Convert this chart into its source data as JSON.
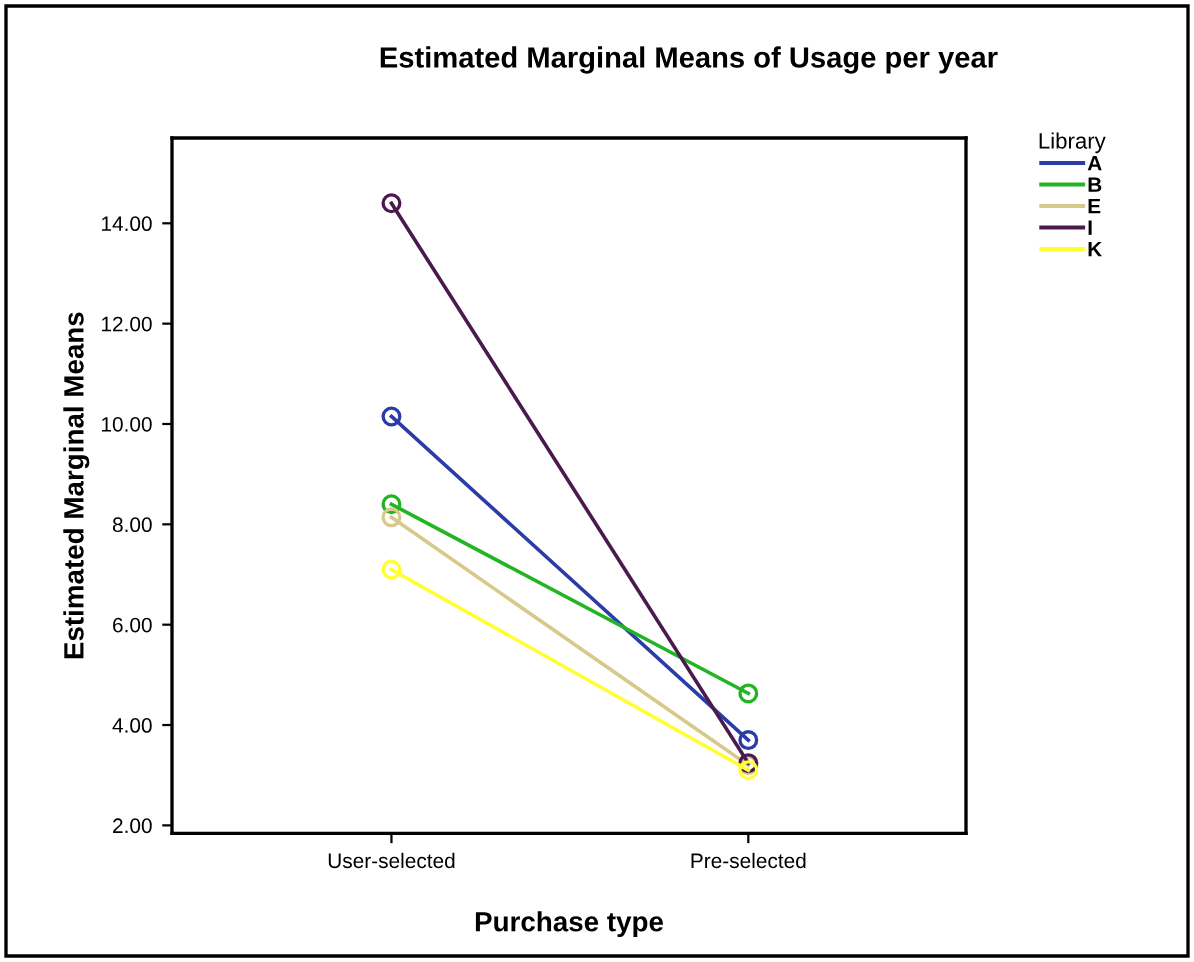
{
  "chart_data": {
    "type": "line",
    "title": "Estimated Marginal Means of Usage per year",
    "xlabel": "Purchase type",
    "ylabel": "Estimated Marginal Means",
    "legend_title": "Library",
    "categories": [
      "User-selected",
      "Pre-selected"
    ],
    "series": [
      {
        "name": "A",
        "color": "#2a3ca8",
        "values": [
          10.15,
          3.7
        ]
      },
      {
        "name": "B",
        "color": "#22b422",
        "values": [
          8.4,
          4.63
        ]
      },
      {
        "name": "E",
        "color": "#d8c88a",
        "values": [
          8.14,
          3.2
        ]
      },
      {
        "name": "I",
        "color": "#4a1a4e",
        "values": [
          14.4,
          3.24
        ]
      },
      {
        "name": "K",
        "color": "#ffff33",
        "values": [
          7.1,
          3.1
        ]
      }
    ],
    "ylim": [
      1.84,
      15.7
    ],
    "yticks": [
      {
        "value": 2,
        "label": "2.00"
      },
      {
        "value": 4,
        "label": "4.00"
      },
      {
        "value": 6,
        "label": "6.00"
      },
      {
        "value": 8,
        "label": "8.00"
      },
      {
        "value": 10,
        "label": "10.00"
      },
      {
        "value": 12,
        "label": "12.00"
      },
      {
        "value": 14,
        "label": "14.00"
      }
    ],
    "marker": "circle",
    "grid": false,
    "legend": "right"
  }
}
